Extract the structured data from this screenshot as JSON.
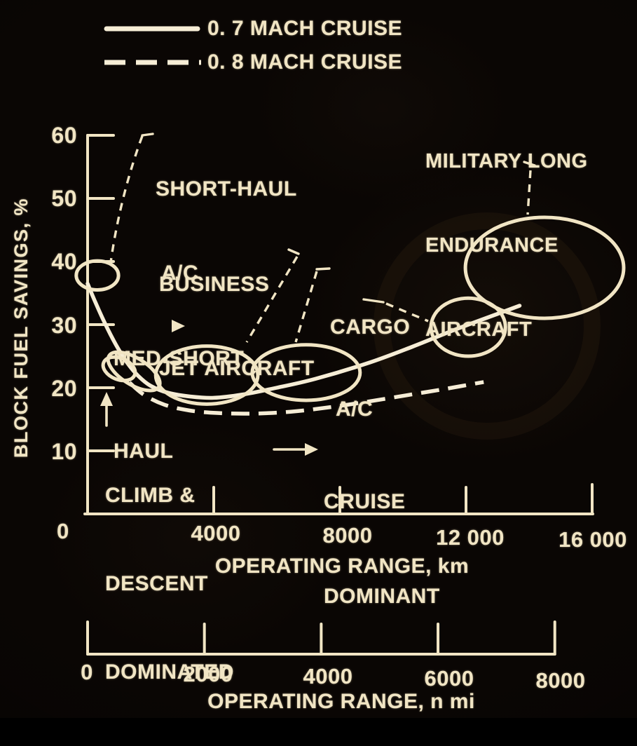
{
  "colors": {
    "ink": "#f1e5c4",
    "ink_bright": "#f6edd6",
    "background": "#0a0604"
  },
  "legend": {
    "items": [
      {
        "label": "0. 7 MACH CRUISE",
        "style": "solid"
      },
      {
        "label": "0. 8 MACH CRUISE",
        "style": "dashed"
      }
    ]
  },
  "y_axis": {
    "title": "BLOCK FUEL SAVINGS, %",
    "tick_labels": [
      "60",
      "50",
      "40",
      "30",
      "20",
      "10"
    ],
    "tick_values": [
      60,
      50,
      40,
      30,
      20,
      10
    ],
    "origin_label": "0"
  },
  "x_axis_km": {
    "title": "OPERATING RANGE, km",
    "tick_labels": [
      "0",
      "4000",
      "8000",
      "12 000",
      "16 000"
    ],
    "tick_values": [
      0,
      4000,
      8000,
      12000,
      16000
    ]
  },
  "x_axis_nmi": {
    "title": "OPERATING RANGE, n mi",
    "tick_labels": [
      "0",
      "2000",
      "4000",
      "6000",
      "8000"
    ],
    "tick_values": [
      0,
      2000,
      4000,
      6000,
      8000
    ],
    "km_per_nmi": 1.852
  },
  "annotations": {
    "short_haul": {
      "lines": [
        "SHORT-HAUL",
        "A/C"
      ]
    },
    "business_jet": {
      "lines": [
        "BUSINESS",
        "JET AIRCRAFT"
      ]
    },
    "med_short": {
      "lines": [
        "MED-SHORT",
        "HAUL"
      ]
    },
    "cargo": {
      "lines": [
        "CARGO",
        "A/C"
      ]
    },
    "military": {
      "lines": [
        "MILITARY LONG",
        "ENDURANCE",
        "AIRCRAFT"
      ]
    },
    "climb": {
      "lines": [
        "CLIMB &",
        "DESCENT",
        "DOMINATED"
      ]
    },
    "cruise": {
      "lines": [
        "CRUISE",
        "DOMINANT"
      ]
    }
  },
  "chart_data": {
    "type": "line",
    "title": "",
    "xlabel": "OPERATING RANGE, km (also shown in n mi)",
    "ylabel": "BLOCK FUEL SAVINGS, %",
    "xlim_km": [
      0,
      16000
    ],
    "xlim_nmi": [
      0,
      8000
    ],
    "ylim": [
      0,
      60
    ],
    "grid": false,
    "legend_position": "top-left",
    "series": [
      {
        "name": "0.7 MACH CRUISE",
        "style": "solid",
        "points": [
          [
            0,
            36.5
          ],
          [
            250,
            33.5
          ],
          [
            550,
            30.2
          ],
          [
            900,
            26.8
          ],
          [
            1250,
            24.0
          ],
          [
            1600,
            21.9
          ],
          [
            2000,
            20.3
          ],
          [
            2550,
            19.2
          ],
          [
            3270,
            18.6
          ],
          [
            4000,
            18.4
          ],
          [
            4890,
            18.9
          ],
          [
            6000,
            20.0
          ],
          [
            7220,
            21.4
          ],
          [
            8890,
            23.9
          ],
          [
            10300,
            26.5
          ],
          [
            11700,
            29.3
          ],
          [
            13160,
            32.0
          ],
          [
            13700,
            33.0
          ]
        ]
      },
      {
        "name": "0.8 MACH CRUISE",
        "style": "dashed",
        "points": [
          [
            1330,
            20.8
          ],
          [
            1780,
            18.9
          ],
          [
            2440,
            17.3
          ],
          [
            3220,
            16.4
          ],
          [
            4110,
            16.0
          ],
          [
            5220,
            15.9
          ],
          [
            6440,
            16.2
          ],
          [
            7670,
            16.9
          ],
          [
            8890,
            17.8
          ],
          [
            10110,
            18.8
          ],
          [
            11330,
            19.8
          ],
          [
            12560,
            20.9
          ]
        ]
      }
    ],
    "groups": [
      {
        "label": "SHORT-HAUL A/C",
        "center_km": 310,
        "center_pct": 37.8,
        "rx_km": 670,
        "ry_pct": 2.3,
        "tilt_deg": 0
      },
      {
        "label": "MED-SHORT HAUL",
        "center_km": 1000,
        "center_pct": 23.0,
        "rx_km": 530,
        "ry_pct": 1.7,
        "tilt_deg": 22
      },
      {
        "label": "MED-SHORT HAUL",
        "center_km": 1470,
        "center_pct": 22.6,
        "rx_km": 930,
        "ry_pct": 2.1,
        "tilt_deg": 32
      },
      {
        "label": "BUSINESS JET AIRCRAFT",
        "center_km": 3780,
        "center_pct": 22.0,
        "rx_km": 1620,
        "ry_pct": 4.6,
        "tilt_deg": 0
      },
      {
        "label": "CARGO A/C",
        "center_km": 6930,
        "center_pct": 22.4,
        "rx_km": 1710,
        "ry_pct": 4.4,
        "tilt_deg": 0
      },
      {
        "label": "CARGO A/C",
        "center_km": 12070,
        "center_pct": 29.6,
        "rx_km": 1180,
        "ry_pct": 4.6,
        "tilt_deg": 0
      },
      {
        "label": "MILITARY LONG ENDURANCE AIRCRAFT",
        "center_km": 14490,
        "center_pct": 39.0,
        "rx_km": 2510,
        "ry_pct": 8.0,
        "tilt_deg": 0
      }
    ],
    "region_notes": [
      "CLIMB & DESCENT DOMINATED (short range)",
      "CRUISE DOMINANT (long range)"
    ]
  }
}
